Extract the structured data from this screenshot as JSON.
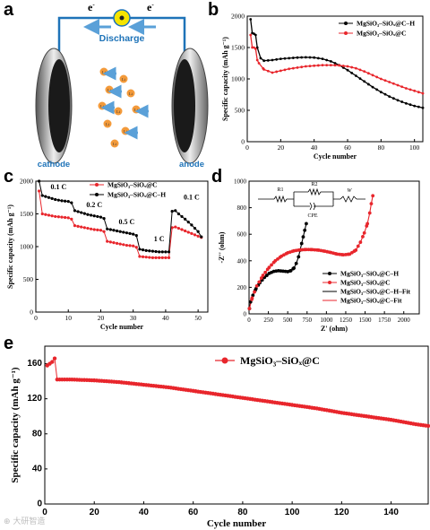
{
  "panels": {
    "a": {
      "label": "a",
      "electron_left": "e",
      "electron_right": "e",
      "electron_sup": "-",
      "discharge": "Discharge",
      "cathode": "cathode",
      "anode": "anode",
      "ion_label": "Li",
      "colors": {
        "wire": "#1e73b8",
        "arrow": "#5aa0d8",
        "ion": "#f39a3a",
        "bulb": "#f5e400"
      }
    },
    "b": {
      "label": "b"
    },
    "c": {
      "label": "c",
      "annotations": [
        "0.1 C",
        "0.2 C",
        "0.5 C",
        "1 C",
        "0.1 C"
      ]
    },
    "d": {
      "label": "d",
      "circuit": {
        "r1": "R1",
        "r2": "R2",
        "cpe": "CPE",
        "w": "W"
      }
    },
    "e": {
      "label": "e"
    }
  },
  "watermark": "⊕ 大研智造",
  "chart_data": [
    {
      "id": "b",
      "type": "line",
      "xlabel": "Cycle number",
      "ylabel": "Specific capacity (mAh g⁻¹)",
      "xlim": [
        0,
        105
      ],
      "ylim": [
        0,
        2000
      ],
      "xticks": [
        0,
        20,
        40,
        60,
        80,
        100
      ],
      "yticks": [
        0,
        500,
        1000,
        1500,
        2000
      ],
      "legend": "top-right",
      "series": [
        {
          "name": "MgSiO₃–SiOₓ@C–H",
          "color": "#000000",
          "x": [
            2,
            3,
            4,
            5,
            6,
            8,
            10,
            15,
            20,
            25,
            30,
            35,
            40,
            45,
            50,
            55,
            60,
            65,
            70,
            75,
            80,
            85,
            90,
            95,
            100,
            105
          ],
          "y": [
            1950,
            1730,
            1720,
            1700,
            1500,
            1330,
            1290,
            1300,
            1320,
            1330,
            1340,
            1345,
            1340,
            1320,
            1280,
            1220,
            1140,
            1050,
            960,
            870,
            790,
            720,
            660,
            610,
            570,
            540
          ]
        },
        {
          "name": "MgSiO₃–SiOₓ@C",
          "color": "#e8262c",
          "x": [
            2,
            3,
            4,
            5,
            6,
            7,
            10,
            15,
            20,
            25,
            30,
            35,
            40,
            45,
            50,
            55,
            60,
            65,
            70,
            75,
            80,
            85,
            90,
            95,
            100,
            105
          ],
          "y": [
            1700,
            1500,
            1500,
            1480,
            1300,
            1250,
            1150,
            1100,
            1130,
            1160,
            1180,
            1200,
            1210,
            1220,
            1220,
            1215,
            1200,
            1170,
            1120,
            1060,
            1000,
            950,
            900,
            850,
            810,
            770
          ]
        }
      ]
    },
    {
      "id": "c",
      "type": "line",
      "xlabel": "Cycle number",
      "ylabel": "Specific capacity (mAh g⁻¹)",
      "xlim": [
        0,
        53
      ],
      "ylim": [
        0,
        2000
      ],
      "xticks": [
        0,
        10,
        20,
        30,
        40,
        50
      ],
      "yticks": [
        0,
        500,
        1000,
        1500,
        2000
      ],
      "legend": "top-right",
      "series": [
        {
          "name": "MgSiO₃–SiOₓ@C",
          "color": "#e8262c",
          "x": [
            1,
            2,
            4,
            6,
            8,
            10,
            11,
            12,
            14,
            16,
            18,
            20,
            21,
            22,
            24,
            26,
            28,
            30,
            31,
            32,
            34,
            36,
            38,
            40,
            41,
            42,
            43,
            44,
            46,
            48,
            50,
            51
          ],
          "y": [
            1850,
            1500,
            1480,
            1460,
            1450,
            1440,
            1420,
            1320,
            1300,
            1280,
            1260,
            1250,
            1230,
            1080,
            1060,
            1040,
            1020,
            1010,
            990,
            850,
            840,
            830,
            830,
            830,
            830,
            1290,
            1300,
            1280,
            1240,
            1200,
            1160,
            1140
          ]
        },
        {
          "name": "MgSiO₃–SiOₓ@C–H",
          "color": "#000000",
          "x": [
            1,
            2,
            4,
            6,
            8,
            10,
            11,
            12,
            14,
            16,
            18,
            20,
            21,
            22,
            24,
            26,
            28,
            30,
            31,
            32,
            34,
            36,
            38,
            40,
            41,
            42,
            43,
            44,
            46,
            48,
            50,
            51
          ],
          "y": [
            2000,
            1780,
            1750,
            1720,
            1700,
            1690,
            1670,
            1550,
            1520,
            1490,
            1470,
            1450,
            1430,
            1270,
            1250,
            1230,
            1210,
            1190,
            1170,
            960,
            940,
            930,
            920,
            920,
            920,
            1540,
            1550,
            1500,
            1420,
            1330,
            1230,
            1150
          ]
        }
      ]
    },
    {
      "id": "d",
      "type": "scatter",
      "xlabel": "Z' (ohm)",
      "ylabel": "-Z'' (ohm)",
      "xlim": [
        0,
        2200
      ],
      "ylim": [
        0,
        1000
      ],
      "xticks": [
        0,
        250,
        500,
        750,
        1000,
        1250,
        1500,
        1750,
        2000
      ],
      "yticks": [
        0,
        200,
        400,
        600,
        800,
        1000
      ],
      "legend": "bottom-right",
      "series": [
        {
          "name": "MgSiO₃–SiOₓ@C–H",
          "color": "#000000",
          "role": "data",
          "x": [
            5,
            20,
            50,
            90,
            140,
            200,
            260,
            320,
            380,
            440,
            500,
            540,
            580,
            610,
            640,
            660,
            680,
            700,
            720,
            740
          ],
          "y": [
            40,
            90,
            140,
            190,
            235,
            275,
            305,
            320,
            325,
            322,
            318,
            325,
            345,
            380,
            430,
            480,
            530,
            580,
            630,
            680
          ]
        },
        {
          "name": "MgSiO₃–SiOₓ@C",
          "color": "#e8262c",
          "role": "data",
          "x": [
            5,
            40,
            100,
            180,
            260,
            340,
            420,
            500,
            580,
            660,
            740,
            820,
            900,
            980,
            1060,
            1140,
            1220,
            1300,
            1380,
            1440,
            1490,
            1530,
            1560,
            1580,
            1600
          ],
          "y": [
            40,
            120,
            210,
            290,
            350,
            400,
            435,
            460,
            475,
            482,
            485,
            484,
            480,
            472,
            462,
            450,
            445,
            450,
            480,
            540,
            610,
            680,
            760,
            830,
            890
          ]
        },
        {
          "name": "MgSiO₃–SiOₓ@C–H–Fit",
          "color": "#000000",
          "role": "fit",
          "x": [
            5,
            20,
            50,
            90,
            140,
            200,
            260,
            320,
            380,
            440,
            500,
            540,
            580,
            610,
            640,
            660,
            680,
            700,
            720,
            740
          ],
          "y": [
            40,
            90,
            140,
            190,
            235,
            275,
            305,
            320,
            325,
            322,
            318,
            325,
            345,
            380,
            430,
            480,
            530,
            580,
            630,
            680
          ]
        },
        {
          "name": "MgSiO₃–SiOₓ@C–Fit",
          "color": "#e8262c",
          "role": "fit",
          "x": [
            5,
            40,
            100,
            180,
            260,
            340,
            420,
            500,
            580,
            660,
            740,
            820,
            900,
            980,
            1060,
            1140,
            1220,
            1300,
            1380,
            1440,
            1490,
            1530,
            1560,
            1580,
            1600
          ],
          "y": [
            40,
            120,
            210,
            290,
            350,
            400,
            435,
            460,
            475,
            482,
            485,
            484,
            480,
            472,
            462,
            450,
            445,
            450,
            480,
            540,
            610,
            680,
            760,
            830,
            890
          ]
        }
      ]
    },
    {
      "id": "e",
      "type": "line",
      "xlabel": "Cycle number",
      "ylabel": "Specific capacity (mAh g⁻¹)",
      "xlim": [
        0,
        155
      ],
      "ylim": [
        0,
        180
      ],
      "xticks": [
        0,
        20,
        40,
        60,
        80,
        100,
        120,
        140
      ],
      "yticks": [
        0,
        40,
        80,
        120,
        160
      ],
      "legend": "top-center",
      "series": [
        {
          "name": "MgSiO₃–SiOₓ@C",
          "color": "#e8262c",
          "x": [
            1,
            2,
            3,
            4,
            5,
            10,
            20,
            30,
            40,
            50,
            60,
            70,
            80,
            90,
            100,
            110,
            120,
            130,
            140,
            150,
            155
          ],
          "y": [
            158,
            160,
            162,
            166,
            142,
            142,
            141,
            139,
            136,
            133,
            129,
            125,
            121,
            117,
            113,
            109,
            104,
            100,
            96,
            91,
            89
          ]
        }
      ]
    }
  ]
}
